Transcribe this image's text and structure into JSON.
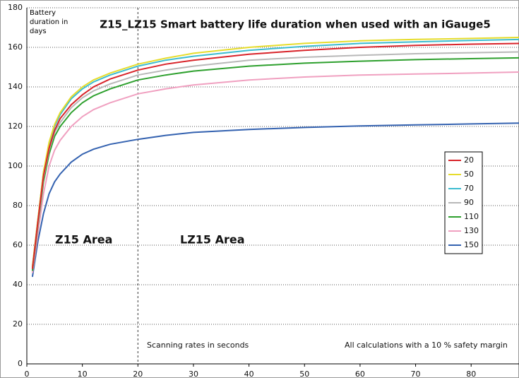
{
  "chart_data": {
    "type": "line",
    "title": "Z15_LZ15 Smart battery life duration when used with an iGauge5",
    "ylabel": "Battery duration in days",
    "annotations": [
      "Z15 Area",
      "LZ15 Area",
      "Scanning rates in seconds",
      "All calculations with a 10 % safety margin"
    ],
    "x": [
      1,
      2,
      3,
      4,
      5,
      6,
      8,
      10,
      12,
      15,
      20,
      25,
      30,
      40,
      50,
      60,
      70,
      80,
      89
    ],
    "series": [
      {
        "name": "20",
        "color": "#d8242a",
        "values": [
          48,
          72,
          95,
          109,
          118,
          124,
          131,
          136,
          140,
          144,
          148.5,
          151.5,
          153.5,
          156.5,
          158.5,
          160,
          161,
          161.6,
          162
        ]
      },
      {
        "name": "50",
        "color": "#e6dc2c",
        "values": [
          49,
          73,
          97,
          112,
          121,
          127,
          135,
          140,
          143.5,
          147,
          151.5,
          154.5,
          157,
          160,
          162,
          163.3,
          164,
          164.5,
          165
        ]
      },
      {
        "name": "70",
        "color": "#3cbcd0",
        "values": [
          49,
          73,
          97,
          111,
          120,
          126,
          134,
          139,
          142.5,
          146,
          150.5,
          153.5,
          155.5,
          158.5,
          160.5,
          162,
          162.8,
          163.5,
          164
        ]
      },
      {
        "name": "90",
        "color": "#b8b8b8",
        "values": [
          48,
          71,
          94,
          108,
          117,
          122,
          129.5,
          134.5,
          138,
          141.5,
          146,
          148.5,
          150.5,
          153.5,
          155,
          156,
          156.8,
          157.3,
          157.7
        ]
      },
      {
        "name": "110",
        "color": "#2ea02e",
        "values": [
          47,
          70,
          92,
          106,
          115,
          120,
          127,
          132,
          135.5,
          139,
          143.5,
          146,
          148,
          150.5,
          152,
          153,
          153.8,
          154.3,
          154.7
        ]
      },
      {
        "name": "130",
        "color": "#f0a0c0",
        "values": [
          46,
          66,
          86,
          100,
          108,
          113,
          120,
          125,
          128.5,
          132,
          136.5,
          139,
          141,
          143.5,
          145,
          146,
          146.5,
          147,
          147.5
        ]
      },
      {
        "name": "150",
        "color": "#3462b0",
        "values": [
          44,
          62,
          76,
          86,
          92,
          96,
          102,
          106,
          108.5,
          111,
          113.5,
          115.5,
          117,
          118.5,
          119.5,
          120.3,
          120.8,
          121.3,
          121.7
        ]
      }
    ],
    "xlim": [
      0,
      89
    ],
    "ylim": [
      0,
      180
    ],
    "xticks": [
      0,
      10,
      20,
      30,
      40,
      50,
      60,
      70,
      80
    ],
    "yticks": [
      0,
      20,
      40,
      60,
      80,
      100,
      120,
      140,
      160,
      180
    ],
    "vlines": [
      20
    ],
    "grid": true,
    "legend": "right"
  }
}
